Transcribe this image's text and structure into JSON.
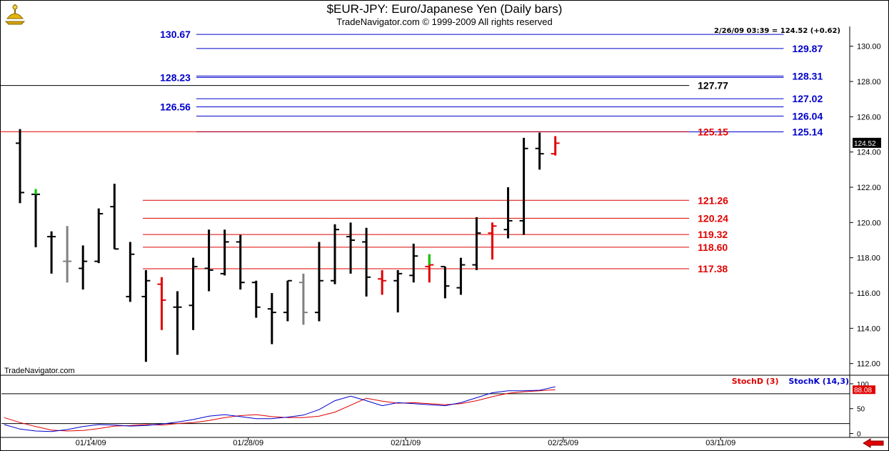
{
  "header": {
    "title": "$EUR-JPY:  Euro/Japanese Yen  (Daily bars)",
    "subtitle": "TradeNavigator.com © 1999-2009 All rights reserved",
    "quote": "2/26/09 03:39 = 124.52 (+0.62)",
    "watermark": "TradeNavigator.com"
  },
  "colors": {
    "bar_up": "#000000",
    "bar_down_red": "#e00000",
    "bar_inside_gray": "#808080",
    "fib_blue": "#0000cc",
    "fib_red": "#e00000",
    "stoch_d": "#e00000",
    "stoch_k": "#0000cc"
  },
  "chart_data": [
    {
      "type": "ohlc",
      "title": "$EUR-JPY:  Euro/Japanese Yen  (Daily bars)",
      "ylim": [
        111.5,
        131.0
      ],
      "y_ticks": [
        "130.00",
        "128.00",
        "126.00",
        "124.00",
        "122.00",
        "120.00",
        "118.00",
        "116.00",
        "114.00",
        "112.00"
      ],
      "y_tick_values": [
        130,
        128,
        126,
        124,
        122,
        120,
        118,
        116,
        114,
        112
      ],
      "last_price_label": "124.52",
      "last_price": 124.52,
      "x_tick_labels": [
        "01/14/09",
        "01/28/09",
        "02/11/09",
        "02/25/09",
        "03/11/09"
      ],
      "x_tick_slots": [
        4.5,
        14.5,
        24.5,
        34.5,
        44.5
      ],
      "bars": [
        {
          "slot": 0,
          "o": 124.5,
          "h": 125.3,
          "l": 121.1,
          "c": 121.7,
          "color": "black"
        },
        {
          "slot": 1,
          "o": 121.6,
          "h": 121.9,
          "l": 118.6,
          "c": 121.6,
          "color": "black"
        },
        {
          "slot": 2,
          "o": 119.2,
          "h": 119.5,
          "l": 117.1,
          "c": 119.2,
          "color": "black"
        },
        {
          "slot": 3,
          "o": 117.8,
          "h": 119.8,
          "l": 116.6,
          "c": 117.8,
          "color": "gray"
        },
        {
          "slot": 4,
          "o": 117.4,
          "h": 118.7,
          "l": 116.2,
          "c": 117.8,
          "color": "black"
        },
        {
          "slot": 5,
          "o": 117.8,
          "h": 120.8,
          "l": 117.7,
          "c": 120.5,
          "color": "black"
        },
        {
          "slot": 6,
          "o": 120.9,
          "h": 122.2,
          "l": 118.5,
          "c": 118.5,
          "color": "black"
        },
        {
          "slot": 7,
          "o": 115.8,
          "h": 118.9,
          "l": 115.5,
          "c": 118.2,
          "color": "black"
        },
        {
          "slot": 8,
          "o": 115.8,
          "h": 117.3,
          "l": 112.1,
          "c": 116.7,
          "color": "black"
        },
        {
          "slot": 9,
          "o": 116.5,
          "h": 116.9,
          "l": 113.9,
          "c": 115.6,
          "color": "red"
        },
        {
          "slot": 10,
          "o": 115.2,
          "h": 116.1,
          "l": 112.5,
          "c": 115.2,
          "color": "black"
        },
        {
          "slot": 11,
          "o": 115.3,
          "h": 118.0,
          "l": 113.9,
          "c": 117.5,
          "color": "black"
        },
        {
          "slot": 12,
          "o": 117.4,
          "h": 119.6,
          "l": 116.1,
          "c": 117.3,
          "color": "black"
        },
        {
          "slot": 13,
          "o": 117.1,
          "h": 119.6,
          "l": 117.0,
          "c": 118.9,
          "color": "black"
        },
        {
          "slot": 14,
          "o": 118.9,
          "h": 119.3,
          "l": 116.2,
          "c": 116.6,
          "color": "black"
        },
        {
          "slot": 15,
          "o": 116.6,
          "h": 116.7,
          "l": 114.6,
          "c": 115.2,
          "color": "black"
        },
        {
          "slot": 16,
          "o": 115.1,
          "h": 116.0,
          "l": 113.1,
          "c": 114.9,
          "color": "black"
        },
        {
          "slot": 17,
          "o": 114.9,
          "h": 116.7,
          "l": 114.4,
          "c": 116.7,
          "color": "black"
        },
        {
          "slot": 18,
          "o": 116.6,
          "h": 117.1,
          "l": 114.2,
          "c": 114.9,
          "color": "gray"
        },
        {
          "slot": 19,
          "o": 114.9,
          "h": 118.9,
          "l": 114.4,
          "c": 116.7,
          "color": "black"
        },
        {
          "slot": 20,
          "o": 116.7,
          "h": 119.9,
          "l": 116.5,
          "c": 119.6,
          "color": "black"
        },
        {
          "slot": 21,
          "o": 119.2,
          "h": 120.0,
          "l": 117.1,
          "c": 119.0,
          "color": "black"
        },
        {
          "slot": 22,
          "o": 118.9,
          "h": 119.7,
          "l": 115.8,
          "c": 116.9,
          "color": "black"
        },
        {
          "slot": 23,
          "o": 116.8,
          "h": 117.3,
          "l": 115.9,
          "c": 116.7,
          "color": "red"
        },
        {
          "slot": 24,
          "o": 116.7,
          "h": 117.3,
          "l": 114.9,
          "c": 117.1,
          "color": "black"
        },
        {
          "slot": 25,
          "o": 117.0,
          "h": 118.8,
          "l": 116.6,
          "c": 118.1,
          "color": "black"
        },
        {
          "slot": 26,
          "o": 117.5,
          "h": 118.2,
          "l": 116.6,
          "c": 117.6,
          "color": "red"
        },
        {
          "slot": 27,
          "o": 117.5,
          "h": 117.5,
          "l": 115.7,
          "c": 116.4,
          "color": "black"
        },
        {
          "slot": 28,
          "o": 116.3,
          "h": 118.0,
          "l": 115.9,
          "c": 117.6,
          "color": "black"
        },
        {
          "slot": 29,
          "o": 117.6,
          "h": 120.3,
          "l": 117.3,
          "c": 119.4,
          "color": "black"
        },
        {
          "slot": 30,
          "o": 119.4,
          "h": 120.0,
          "l": 117.9,
          "c": 119.8,
          "color": "red"
        },
        {
          "slot": 31,
          "o": 119.6,
          "h": 122.0,
          "l": 119.1,
          "c": 120.1,
          "color": "black"
        },
        {
          "slot": 32,
          "o": 120.1,
          "h": 124.8,
          "l": 119.3,
          "c": 124.2,
          "color": "black"
        },
        {
          "slot": 33,
          "o": 124.2,
          "h": 125.1,
          "l": 123.0,
          "c": 123.9,
          "color": "black"
        },
        {
          "slot": 34,
          "o": 123.9,
          "h": 124.9,
          "l": 123.8,
          "c": 124.5,
          "color": "red"
        }
      ],
      "levels": [
        {
          "value": 130.67,
          "label": "130.67",
          "color": "blue",
          "side": "left",
          "from_slot": 11.2,
          "to_slot": 48.5
        },
        {
          "value": 129.87,
          "label": "129.87",
          "color": "blue",
          "side": "right",
          "from_slot": 11.2,
          "to_slot": 48.5
        },
        {
          "value": 128.31,
          "label": "128.31",
          "color": "blue",
          "side": "right",
          "from_slot": 11.2,
          "to_slot": 48.5
        },
        {
          "value": 128.23,
          "label": "128.23",
          "color": "blue",
          "side": "left",
          "from_slot": 11.2,
          "to_slot": 48.5
        },
        {
          "value": 127.77,
          "label": "127.77",
          "color": "black",
          "side": "right",
          "from_slot": -1.4,
          "to_slot": 42.5
        },
        {
          "value": 127.02,
          "label": "127.02",
          "color": "blue",
          "side": "right",
          "from_slot": 11.2,
          "to_slot": 48.5
        },
        {
          "value": 126.56,
          "label": "126.56",
          "color": "blue",
          "side": "left",
          "from_slot": 11.2,
          "to_slot": 48.5
        },
        {
          "value": 126.04,
          "label": "126.04",
          "color": "blue",
          "side": "right",
          "from_slot": 11.2,
          "to_slot": 48.5
        },
        {
          "value": 125.14,
          "label": "125.14",
          "color": "blue",
          "side": "right",
          "from_slot": 11.2,
          "to_slot": 48.5
        },
        {
          "value": 125.15,
          "label": "125.15",
          "color": "red",
          "side": "right",
          "from_slot": -1.4,
          "to_slot": 42.5
        },
        {
          "value": 121.26,
          "label": "121.26",
          "color": "red",
          "side": "right",
          "from_slot": 7.8,
          "to_slot": 42.5
        },
        {
          "value": 120.24,
          "label": "120.24",
          "color": "red",
          "side": "right",
          "from_slot": 7.8,
          "to_slot": 42.5
        },
        {
          "value": 119.32,
          "label": "119.32",
          "color": "red",
          "side": "right",
          "from_slot": 7.8,
          "to_slot": 42.5
        },
        {
          "value": 118.6,
          "label": "118.60",
          "color": "red",
          "side": "right",
          "from_slot": 7.8,
          "to_slot": 42.5
        },
        {
          "value": 117.38,
          "label": "117.38",
          "color": "red",
          "side": "right",
          "from_slot": 7.8,
          "to_slot": 42.5
        }
      ]
    },
    {
      "type": "line",
      "ylim": [
        -5,
        110
      ],
      "y_ticks": [
        "100",
        "50",
        "0"
      ],
      "y_tick_values": [
        100,
        50,
        0
      ],
      "ref_lines": [
        80,
        20
      ],
      "last_value_label": "88.08",
      "last_value": 88.08,
      "series": [
        {
          "name": "StochD (3)",
          "color": "red",
          "values": [
            32,
            22,
            14,
            7,
            5,
            6,
            10,
            15,
            16,
            18,
            17,
            20,
            22,
            26,
            32,
            36,
            38,
            34,
            32,
            32,
            35,
            43,
            57,
            71,
            65,
            61,
            62,
            60,
            58,
            60,
            66,
            74,
            81,
            84,
            86,
            88
          ]
        },
        {
          "name": "StochK (14,3)",
          "color": "blue",
          "values": [
            18,
            9,
            5,
            4,
            8,
            14,
            18,
            17,
            15,
            16,
            19,
            23,
            28,
            35,
            38,
            34,
            30,
            30,
            33,
            37,
            48,
            66,
            75,
            66,
            56,
            62,
            60,
            58,
            56,
            62,
            72,
            82,
            86,
            86,
            87,
            94
          ]
        }
      ]
    }
  ]
}
